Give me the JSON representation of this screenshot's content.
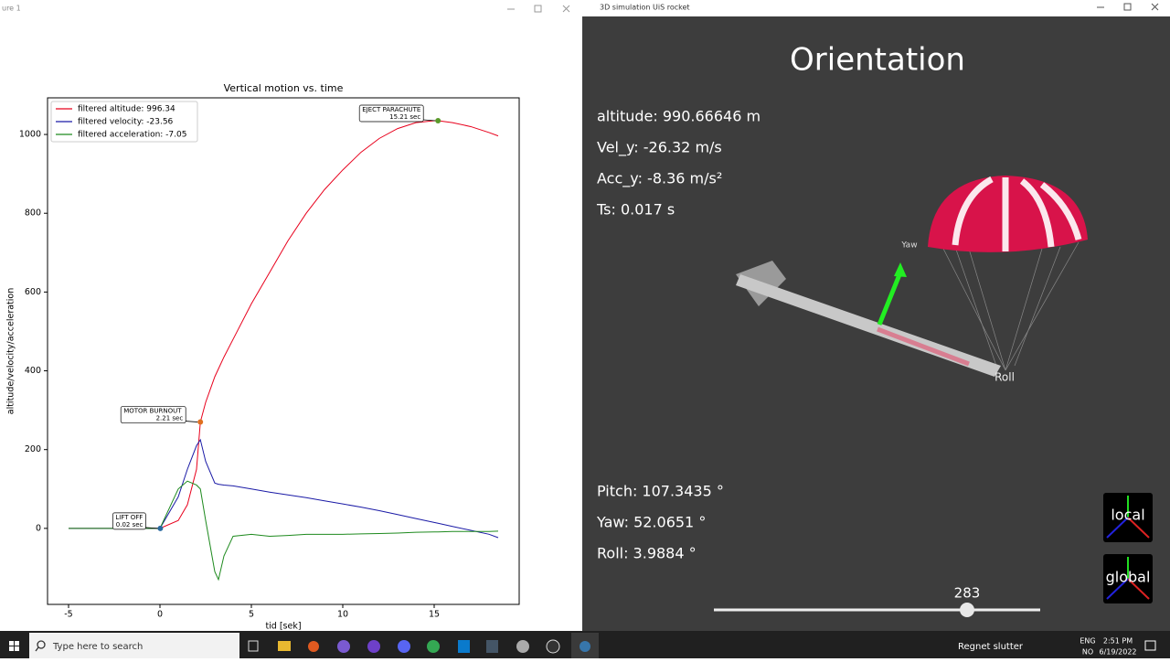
{
  "left_window": {
    "title": "ure 1"
  },
  "chart_data": {
    "type": "line",
    "title": "Vertical motion vs. time",
    "x_label": "tid [sek]",
    "y_label": "altitude/velocity/acceleration",
    "x": [
      -5,
      0,
      1,
      1.5,
      2,
      2.21,
      2.5,
      3,
      3.2,
      3.5,
      4,
      5,
      6,
      7,
      8,
      9,
      10,
      11,
      12,
      13,
      14,
      15,
      15.21,
      16,
      17,
      18,
      18.5
    ],
    "series": [
      {
        "name": "filtered altitude: 996.34",
        "color": "#e8001c",
        "values": [
          0,
          0,
          20,
          60,
          150,
          270,
          320,
          385,
          405,
          435,
          480,
          570,
          650,
          730,
          800,
          860,
          910,
          955,
          990,
          1015,
          1030,
          1035,
          1035,
          1030,
          1020,
          1005,
          996.34
        ]
      },
      {
        "name": "filtered velocity: -23.56",
        "color": "#1a1aa6",
        "values": [
          0,
          0,
          80,
          150,
          210,
          225,
          170,
          115,
          112,
          110,
          108,
          100,
          92,
          85,
          78,
          70,
          62,
          54,
          45,
          35,
          25,
          15,
          13,
          5,
          -5,
          -15,
          -23.56
        ]
      },
      {
        "name": "filtered acceleration: -7.05",
        "color": "#1e8a1e",
        "values": [
          0,
          0,
          100,
          120,
          110,
          100,
          20,
          -110,
          -130,
          -70,
          -20,
          -15,
          -20,
          -18,
          -15,
          -15,
          -15,
          -14,
          -13,
          -12,
          -10,
          -9,
          -9,
          -8,
          -8,
          -8,
          -7.05
        ]
      }
    ],
    "annotations": [
      {
        "label": "EJECT PARACHUTE",
        "sublabel": "15.21 sec",
        "x": 15.21,
        "y": 1035,
        "color": "#5a9a2a"
      },
      {
        "label": "MOTOR BURNOUT",
        "sublabel": "2.21 sec",
        "x": 2.21,
        "y": 270,
        "color": "#e07020"
      },
      {
        "label": "LIFT OFF",
        "sublabel": "0.02 sec",
        "x": 0.02,
        "y": 0,
        "color": "#2a6aa0"
      }
    ],
    "xlim": [
      -6.15,
      19.65
    ],
    "ylim": [
      -193,
      1093
    ],
    "xticks": [
      -5,
      0,
      5,
      10,
      15
    ],
    "yticks": [
      0,
      200,
      400,
      600,
      800,
      1000
    ],
    "legend": "upper left"
  },
  "right_window": {
    "title": "3D simulation UiS rocket",
    "heading": "Orientation",
    "info": [
      "altitude: 990.66646 m",
      "Vel_y: -26.32 m/s",
      "Acc_y: -8.36 m/s²",
      "Ts: 0.017 s"
    ],
    "angles": [
      "Pitch: 107.3435 °",
      "Yaw: 52.0651 °",
      "Roll: 3.9884 °"
    ],
    "axis_labels": [
      "Yaw",
      "Roll"
    ],
    "slider": "283",
    "buttons": [
      "local",
      "global"
    ]
  },
  "taskbar": {
    "search": "Type here to search",
    "weather": "Regnet slutter",
    "lang": "ENG",
    "region": "NO",
    "time": "2:51 PM",
    "date": "6/19/2022"
  }
}
